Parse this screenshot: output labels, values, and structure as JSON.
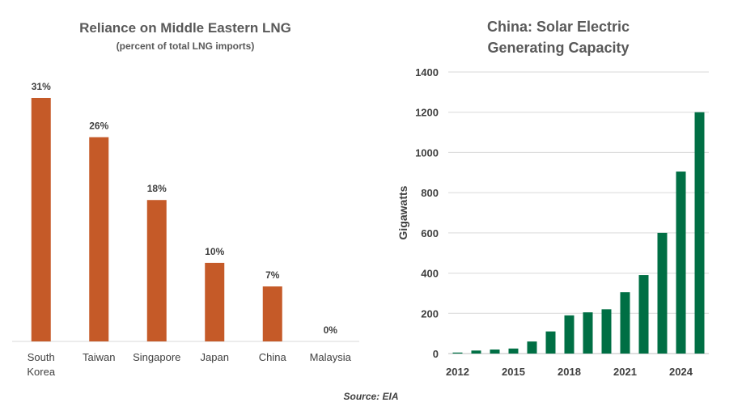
{
  "chart_data": [
    {
      "type": "bar",
      "title": "Reliance on Middle Eastern LNG",
      "subtitle": "(percent of total LNG imports)",
      "categories": [
        [
          "South",
          "Korea"
        ],
        [
          "Taiwan"
        ],
        [
          "Singapore"
        ],
        [
          "Japan"
        ],
        [
          "China"
        ],
        [
          "Malaysia"
        ]
      ],
      "values": [
        31,
        26,
        18,
        10,
        7,
        0
      ],
      "data_labels": [
        "31%",
        "26%",
        "18%",
        "10%",
        "7%",
        "0%"
      ],
      "ylim": [
        0,
        31
      ],
      "color": "#C55A28",
      "grid": false
    },
    {
      "type": "bar",
      "title": [
        "China: Solar Electric",
        "Generating Capacity"
      ],
      "ylabel": "Gigawatts",
      "x": [
        2012,
        2013,
        2014,
        2015,
        2016,
        2017,
        2018,
        2019,
        2020,
        2021,
        2022,
        2023,
        2024,
        2025
      ],
      "values": [
        5,
        15,
        20,
        25,
        60,
        110,
        190,
        205,
        220,
        305,
        390,
        600,
        905,
        1200
      ],
      "xticks": [
        2012,
        2015,
        2018,
        2021,
        2024
      ],
      "yticks": [
        0,
        200,
        400,
        600,
        800,
        1000,
        1200,
        1400
      ],
      "ylim": [
        0,
        1400
      ],
      "color": "#006F44",
      "grid": true
    }
  ],
  "source": "Source: EIA"
}
